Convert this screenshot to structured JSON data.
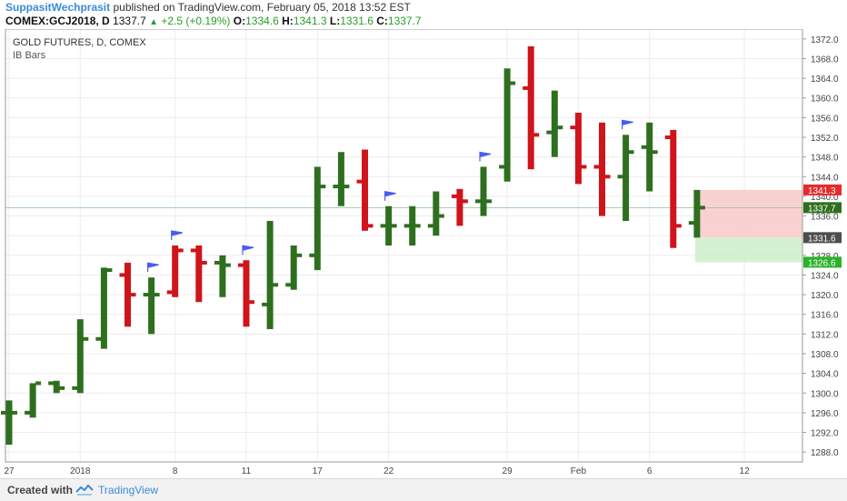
{
  "header": {
    "author": "SuppasitWechprasit",
    "published_text": "published on TradingView.com, February 05, 2018 13:52 EST"
  },
  "symbol_line": {
    "symbol": "COMEX:GCJ2018, D",
    "last": "1337.7",
    "change": "+2.5 (+0.19%)",
    "open_label": "O:",
    "open": "1334.6",
    "high_label": "H:",
    "high": "1341.3",
    "low_label": "L:",
    "low": "1331.6",
    "close_label": "C:",
    "close": "1337.7"
  },
  "legend": {
    "title": "GOLD FUTURES, D, COMEX",
    "indicator": "IB Bars"
  },
  "colors": {
    "up": "#2e6f1f",
    "down": "#d0141b",
    "flag": "#4a5cf0",
    "stop_zone": "#f9c9c9",
    "target_zone": "#cdeec9",
    "stop_label": "#e52b2b",
    "close_label": "#2e6f1f",
    "low_label": "#4d4d4d",
    "target_label": "#2bb12b"
  },
  "price_labels": {
    "stop": "1341.3",
    "close": "1337.7",
    "entry": "1331.6",
    "target": "1326.6"
  },
  "footer": {
    "created_with": "Created with",
    "brand": "TradingView"
  },
  "chart_data": {
    "type": "ohlc",
    "title": "GOLD FUTURES, D, COMEX",
    "ylim": [
      1286,
      1374
    ],
    "y_ticks": [
      1288,
      1292,
      1296,
      1300,
      1304,
      1308,
      1312,
      1316,
      1320,
      1324,
      1328,
      1332,
      1336,
      1340,
      1344,
      1348,
      1352,
      1356,
      1360,
      1364,
      1368,
      1372
    ],
    "x_ticks": [
      {
        "label": "27",
        "index": 0
      },
      {
        "label": "2018",
        "index": 3
      },
      {
        "label": "8",
        "index": 7
      },
      {
        "label": "11",
        "index": 10
      },
      {
        "label": "17",
        "index": 13
      },
      {
        "label": "22",
        "index": 16
      },
      {
        "label": "29",
        "index": 21
      },
      {
        "label": "Feb",
        "index": 24
      },
      {
        "label": "6",
        "index": 27
      },
      {
        "label": "12",
        "index": 31
      }
    ],
    "bars": [
      {
        "date": "Dec 27",
        "o": 1296,
        "h": 1298.5,
        "l": 1289.5,
        "c": 1296,
        "color": "up"
      },
      {
        "date": "Dec 28",
        "o": 1296,
        "h": 1302,
        "l": 1295,
        "c": 1302,
        "color": "up"
      },
      {
        "date": "Dec 29",
        "o": 1302,
        "h": 1302.5,
        "l": 1300,
        "c": 1301,
        "color": "up"
      },
      {
        "date": "Jan 02",
        "o": 1301,
        "h": 1315,
        "l": 1300,
        "c": 1311,
        "color": "up"
      },
      {
        "date": "Jan 03",
        "o": 1311,
        "h": 1325.5,
        "l": 1309,
        "c": 1325,
        "color": "up"
      },
      {
        "date": "Jan 04",
        "o": 1324,
        "h": 1326.5,
        "l": 1313.5,
        "c": 1320,
        "color": "down"
      },
      {
        "date": "Jan 05",
        "o": 1320,
        "h": 1323.5,
        "l": 1312,
        "c": 1320,
        "color": "up"
      },
      {
        "date": "Jan 08",
        "o": 1320.5,
        "h": 1330,
        "l": 1319.5,
        "c": 1329,
        "color": "down"
      },
      {
        "date": "Jan 09",
        "o": 1329,
        "h": 1330,
        "l": 1318.5,
        "c": 1326.5,
        "color": "down"
      },
      {
        "date": "Jan 10",
        "o": 1326.5,
        "h": 1328,
        "l": 1319.5,
        "c": 1326,
        "color": "up"
      },
      {
        "date": "Jan 11",
        "o": 1326,
        "h": 1327,
        "l": 1313.5,
        "c": 1318.5,
        "color": "down"
      },
      {
        "date": "Jan 12",
        "o": 1318,
        "h": 1335,
        "l": 1313,
        "c": 1322,
        "color": "up"
      },
      {
        "date": "Jan 15",
        "o": 1322,
        "h": 1330,
        "l": 1321,
        "c": 1328,
        "color": "up"
      },
      {
        "date": "Jan 16",
        "o": 1328,
        "h": 1346,
        "l": 1325,
        "c": 1342,
        "color": "up"
      },
      {
        "date": "Jan 17",
        "o": 1342,
        "h": 1349,
        "l": 1338,
        "c": 1342,
        "color": "up"
      },
      {
        "date": "Jan 18",
        "o": 1343,
        "h": 1349.5,
        "l": 1333,
        "c": 1334,
        "color": "down"
      },
      {
        "date": "Jan 19",
        "o": 1334,
        "h": 1338,
        "l": 1330,
        "c": 1334,
        "color": "up"
      },
      {
        "date": "Jan 22",
        "o": 1334,
        "h": 1338,
        "l": 1330,
        "c": 1334,
        "color": "up"
      },
      {
        "date": "Jan 23",
        "o": 1334,
        "h": 1341,
        "l": 1332,
        "c": 1336,
        "color": "up"
      },
      {
        "date": "Jan 24",
        "o": 1340,
        "h": 1341.5,
        "l": 1334,
        "c": 1339,
        "color": "down"
      },
      {
        "date": "Jan 25",
        "o": 1339,
        "h": 1346,
        "l": 1336,
        "c": 1339,
        "color": "up"
      },
      {
        "date": "Jan 26",
        "o": 1346,
        "h": 1366,
        "l": 1343,
        "c": 1363,
        "color": "up"
      }
    ],
    "flags": [],
    "zones": {
      "stop": 1341.3,
      "entry": 1331.6,
      "target": 1326.6
    }
  }
}
